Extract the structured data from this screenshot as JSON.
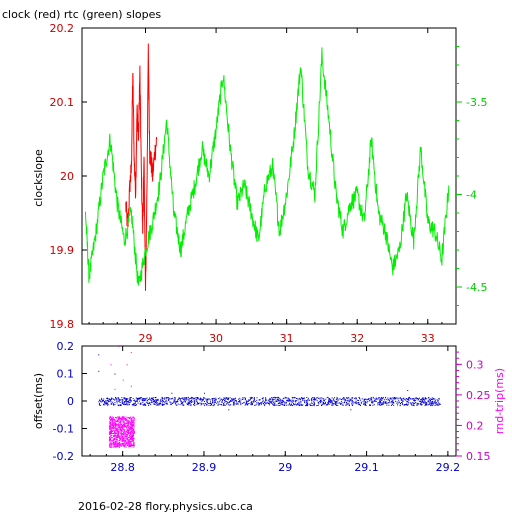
{
  "header": {
    "title": "clock (red) rtc (green) slopes"
  },
  "footer": {
    "caption": "2016-02-28 flory.physics.ubc.ca"
  },
  "colors": {
    "red": "#ff0000",
    "green": "#00ee00",
    "blue": "#0000cc",
    "magenta": "#ff00ff",
    "axis_red": "#cc0000",
    "axis_green": "#00cc00",
    "axis_blue": "#0000cc",
    "axis_magenta": "#cc00cc"
  },
  "chart_data": [
    {
      "type": "line",
      "title": "clock (red) rtc (green) slopes",
      "ylabel": "clockslope",
      "ylabel_right": "",
      "xlim": [
        28.1,
        33.4
      ],
      "xticks": [
        29,
        30,
        31,
        32,
        33
      ],
      "xtick_labels": [
        "29",
        "30",
        "31",
        "32",
        "33"
      ],
      "ylim": [
        19.8,
        20.2
      ],
      "yticks": [
        19.8,
        19.9,
        20,
        20.1,
        20.2
      ],
      "ytick_labels": [
        "19.8",
        "19.9",
        "20",
        "20.1",
        "20.2"
      ],
      "ylim_right": [
        -4.7,
        -3.1
      ],
      "yticks_right": [
        -4.5,
        -4,
        -3.5
      ],
      "ytick_labels_right": [
        "-4.5",
        "-4",
        "-3.5"
      ],
      "grid": false,
      "series": [
        {
          "name": "clock",
          "axis": "left",
          "color": "red",
          "x": [
            28.72,
            28.75,
            28.78,
            28.8,
            28.82,
            28.84,
            28.86,
            28.88,
            28.9,
            28.92,
            28.94,
            28.96,
            28.98,
            29.0,
            29.02,
            29.04,
            29.06,
            29.08,
            29.1,
            29.13,
            29.16
          ],
          "y": [
            19.96,
            19.93,
            19.99,
            20.01,
            20.14,
            20.02,
            19.98,
            20.09,
            20.05,
            20.14,
            20.01,
            19.93,
            20.02,
            19.84,
            19.98,
            20.17,
            20.03,
            20.02,
            20.0,
            20.03,
            20.05
          ]
        },
        {
          "name": "rtc",
          "axis": "right",
          "color": "green",
          "x": [
            28.15,
            28.2,
            28.3,
            28.4,
            28.5,
            28.6,
            28.7,
            28.8,
            28.9,
            29.0,
            29.1,
            29.2,
            29.3,
            29.4,
            29.5,
            29.6,
            29.7,
            29.8,
            29.9,
            30.0,
            30.1,
            30.2,
            30.3,
            30.4,
            30.5,
            30.6,
            30.7,
            30.8,
            30.9,
            31.0,
            31.1,
            31.2,
            31.3,
            31.4,
            31.5,
            31.6,
            31.7,
            31.8,
            31.9,
            32.0,
            32.1,
            32.2,
            32.3,
            32.4,
            32.5,
            32.6,
            32.7,
            32.8,
            32.9,
            33.0,
            33.1,
            33.2,
            33.3
          ],
          "y": [
            -4.1,
            -4.45,
            -4.2,
            -3.9,
            -3.7,
            -4.05,
            -4.25,
            -4.1,
            -4.5,
            -4.3,
            -4.15,
            -3.95,
            -3.6,
            -4.1,
            -4.3,
            -4.1,
            -3.95,
            -3.75,
            -3.9,
            -3.65,
            -3.35,
            -3.75,
            -4.05,
            -3.95,
            -4.1,
            -4.25,
            -3.95,
            -3.85,
            -4.2,
            -4.0,
            -3.7,
            -3.3,
            -3.85,
            -4.0,
            -3.25,
            -3.6,
            -4.0,
            -4.2,
            -4.05,
            -4.0,
            -4.15,
            -3.7,
            -4.1,
            -4.2,
            -4.4,
            -4.3,
            -4.0,
            -4.25,
            -3.75,
            -4.15,
            -4.2,
            -4.35,
            -3.95
          ]
        }
      ]
    },
    {
      "type": "scatter",
      "xlabel": "",
      "ylabel": "offset(ms)",
      "ylabel_right": "rnd-trip(ms)",
      "xlim": [
        28.75,
        29.21
      ],
      "xticks": [
        28.8,
        28.9,
        29,
        29.1,
        29.2
      ],
      "xtick_labels": [
        "28.8",
        "28.9",
        "29",
        "29.1",
        "29.2"
      ],
      "ylim": [
        -0.2,
        0.2
      ],
      "yticks": [
        -0.2,
        -0.1,
        0,
        0.1,
        0.2
      ],
      "ytick_labels": [
        "-0.2",
        "-0.1",
        "0",
        "0.1",
        "0.2"
      ],
      "ylim_right": [
        0.15,
        0.33
      ],
      "yticks_right": [
        0.15,
        0.2,
        0.25,
        0.3
      ],
      "ytick_labels_right": [
        "0.15",
        "0.2",
        "0.25",
        "0.3"
      ],
      "grid": false,
      "series": [
        {
          "name": "offset",
          "axis": "left",
          "color": "blue",
          "x_range": [
            28.77,
            29.19
          ],
          "y_center": 0.0,
          "y_spread": 0.015,
          "outliers": [
            [
              28.77,
              0.17
            ],
            [
              28.77,
              0.11
            ],
            [
              28.79,
              0.1
            ],
            [
              28.8,
              -0.12
            ],
            [
              28.81,
              -0.13
            ],
            [
              28.86,
              0.03
            ],
            [
              28.93,
              -0.03
            ],
            [
              29.08,
              -0.03
            ],
            [
              29.15,
              0.04
            ],
            [
              28.9,
              0.03
            ]
          ]
        },
        {
          "name": "rnd-trip",
          "axis": "right",
          "color": "magenta",
          "x_range": [
            28.783,
            28.814
          ],
          "y_center": 0.19,
          "y_spread": 0.025,
          "outliers": [
            [
              28.785,
              0.3
            ],
            [
              28.795,
              0.33
            ],
            [
              28.8,
              0.275
            ],
            [
              28.81,
              0.32
            ],
            [
              28.805,
              0.3
            ],
            [
              28.79,
              0.26
            ],
            [
              28.81,
              0.265
            ]
          ]
        }
      ]
    }
  ]
}
